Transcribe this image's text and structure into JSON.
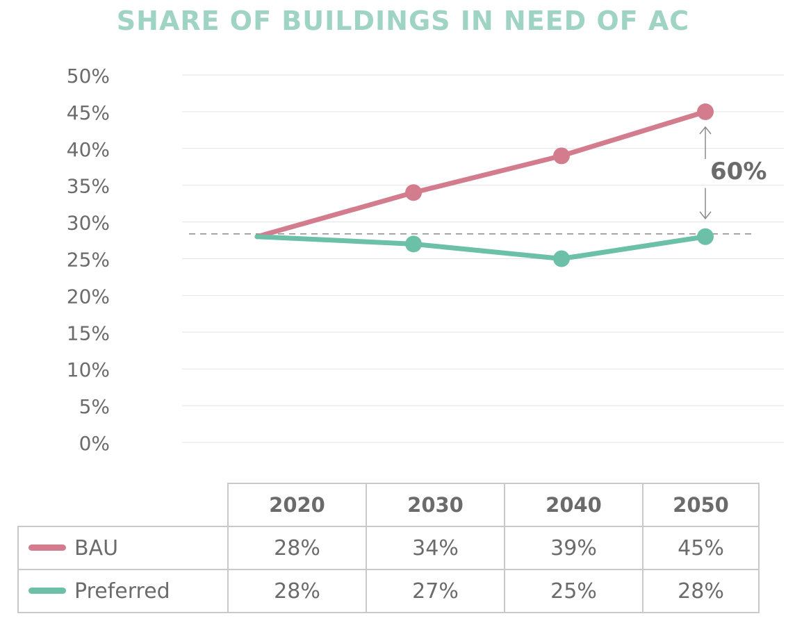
{
  "chart_data": {
    "type": "line",
    "title": "SHARE OF BUILDINGS IN NEED OF AC",
    "categories": [
      "2020",
      "2030",
      "2040",
      "2050"
    ],
    "series": [
      {
        "name": "BAU",
        "color": "#d27c8e",
        "values": [
          28,
          34,
          39,
          45
        ]
      },
      {
        "name": "Preferred",
        "color": "#6cc0a8",
        "values": [
          28,
          27,
          25,
          28
        ]
      }
    ],
    "y_ticks": [
      "50%",
      "45%",
      "40%",
      "35%",
      "30%",
      "25%",
      "20%",
      "15%",
      "10%",
      "5%",
      "0%"
    ],
    "ylim": [
      0,
      50
    ],
    "grid": true,
    "reference_line": 28,
    "annotation": {
      "text": "60%"
    },
    "table": {
      "headers": [
        "2020",
        "2030",
        "2040",
        "2050"
      ],
      "rows": [
        {
          "label": "BAU",
          "cells": [
            "28%",
            "34%",
            "39%",
            "45%"
          ]
        },
        {
          "label": "Preferred",
          "cells": [
            "28%",
            "27%",
            "25%",
            "28%"
          ]
        }
      ]
    }
  },
  "colors": {
    "title": "#9fd3c3",
    "text": "#6b6b6b",
    "grid": "#e3e3e3",
    "dashed": "#8a8a8a",
    "arrow": "#8a8a8a"
  }
}
